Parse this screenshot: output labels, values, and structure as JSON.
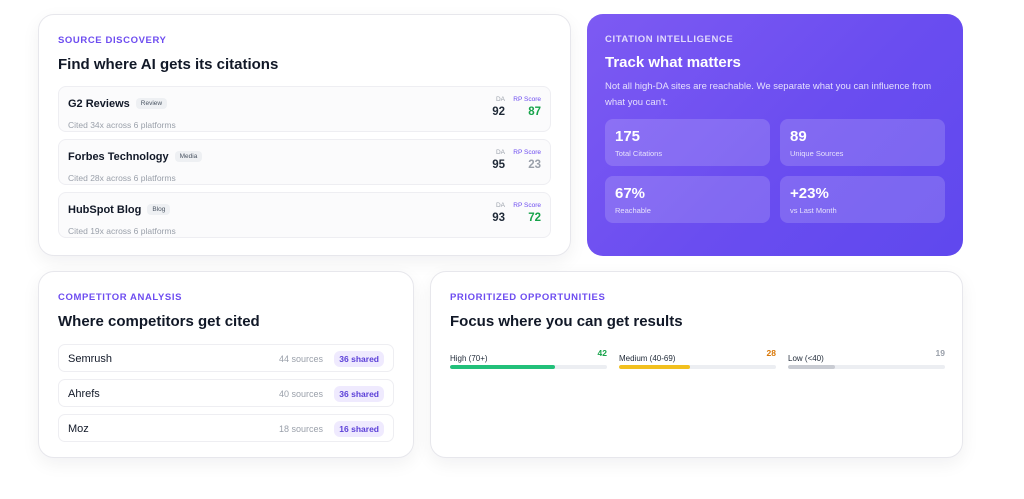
{
  "source_discovery": {
    "eyebrow": "SOURCE DISCOVERY",
    "title": "Find where AI gets its citations",
    "items": [
      {
        "name": "G2 Reviews",
        "tag": "Review",
        "cited": "Cited 34x across 6 platforms",
        "da_label": "DA",
        "da": "92",
        "rp_label": "RP Score",
        "rp": "87",
        "rp_color": "#16a34a"
      },
      {
        "name": "Forbes Technology",
        "tag": "Media",
        "cited": "Cited 28x across 6 platforms",
        "da_label": "DA",
        "da": "95",
        "rp_label": "RP Score",
        "rp": "23",
        "rp_color": "#9aa0aa"
      },
      {
        "name": "HubSpot Blog",
        "tag": "Blog",
        "cited": "Cited 19x across 6 platforms",
        "da_label": "DA",
        "da": "93",
        "rp_label": "RP Score",
        "rp": "72",
        "rp_color": "#16a34a"
      }
    ]
  },
  "citation_intelligence": {
    "eyebrow": "CITATION INTELLIGENCE",
    "title": "Track what matters",
    "description": "Not all high-DA sites are reachable. We separate what you can influence from what you can't.",
    "stats": [
      {
        "value": "175",
        "label": "Total Citations"
      },
      {
        "value": "89",
        "label": "Unique Sources"
      },
      {
        "value": "67%",
        "label": "Reachable"
      },
      {
        "value": "+23%",
        "label": "vs Last Month"
      }
    ],
    "colors": {
      "gradient_start": "#7d5af3",
      "gradient_end": "#5f48ee"
    }
  },
  "competitor_analysis": {
    "eyebrow": "COMPETITOR ANALYSIS",
    "title": "Where competitors get cited",
    "items": [
      {
        "name": "Semrush",
        "sources": "44 sources",
        "shared": "36 shared"
      },
      {
        "name": "Ahrefs",
        "sources": "40 sources",
        "shared": "36 shared"
      },
      {
        "name": "Moz",
        "sources": "18 sources",
        "shared": "16 shared"
      }
    ]
  },
  "prioritized_opportunities": {
    "eyebrow": "PRIORITIZED OPPORTUNITIES",
    "title": "Focus where you can get results",
    "items": [
      {
        "label": "High (70+)",
        "count": "42",
        "color": "#16a34a",
        "bar_color": "#22c07a",
        "fill_fraction": 0.67
      },
      {
        "label": "Medium (40-69)",
        "count": "28",
        "color": "#d97706",
        "bar_color": "#f2c01e",
        "fill_fraction": 0.45
      },
      {
        "label": "Low (<40)",
        "count": "19",
        "color": "#9aa0aa",
        "bar_color": "#c9ccd3",
        "fill_fraction": 0.3
      }
    ]
  },
  "colors": {
    "accent": "#6d4cf0",
    "badge_bg": "#efeafe",
    "positive": "#16a34a"
  }
}
